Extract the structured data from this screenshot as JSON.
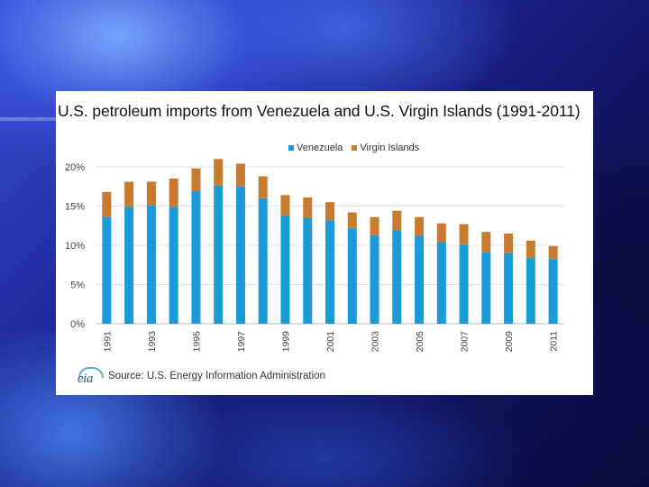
{
  "chart_data": {
    "type": "bar",
    "stacked": true,
    "title": "U.S. petroleum imports from Venezuela and U.S. Virgin Islands (1991-2011)",
    "categories": [
      "1991",
      "1992",
      "1993",
      "1994",
      "1995",
      "1996",
      "1997",
      "1998",
      "1999",
      "2000",
      "2001",
      "2002",
      "2003",
      "2004",
      "2005",
      "2006",
      "2007",
      "2008",
      "2009",
      "2010",
      "2011"
    ],
    "tick_labels": [
      "1991",
      "",
      "1993",
      "",
      "1995",
      "",
      "1997",
      "",
      "1999",
      "",
      "2001",
      "",
      "2003",
      "",
      "2005",
      "",
      "2007",
      "",
      "2009",
      "",
      "2011"
    ],
    "series": [
      {
        "name": "Venezuela",
        "color": "#1a9ad6",
        "values": [
          13.6,
          14.9,
          15.1,
          14.9,
          16.9,
          17.6,
          17.5,
          16.0,
          13.8,
          13.5,
          13.2,
          12.2,
          11.3,
          11.9,
          11.2,
          10.4,
          10.1,
          9.1,
          9.0,
          8.4,
          8.3
        ]
      },
      {
        "name": "Virgin Islands",
        "color": "#c87a2e",
        "values": [
          3.2,
          3.2,
          3.0,
          3.6,
          2.9,
          3.4,
          2.9,
          2.8,
          2.6,
          2.6,
          2.3,
          2.0,
          2.3,
          2.5,
          2.4,
          2.4,
          2.6,
          2.6,
          2.5,
          2.2,
          1.6
        ]
      }
    ],
    "y_ticks": [
      "0%",
      "5%",
      "10%",
      "15%",
      "20%"
    ],
    "ylim": [
      0,
      20
    ],
    "grid": true,
    "legend_position": "top-right"
  },
  "footer": {
    "logo_text": "eia",
    "source": "Source: U.S. Energy Information Administration"
  }
}
